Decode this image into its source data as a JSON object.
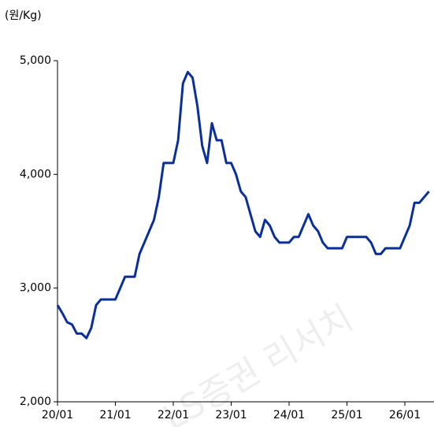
{
  "chart_data": {
    "type": "line",
    "y_label": "(원/Kg)",
    "watermark": "LS증권 리서치",
    "x": [
      "20/01",
      "20/02",
      "20/03",
      "20/04",
      "20/05",
      "20/06",
      "20/07",
      "20/08",
      "20/09",
      "20/10",
      "20/11",
      "20/12",
      "21/01",
      "21/02",
      "21/03",
      "21/04",
      "21/05",
      "21/06",
      "21/07",
      "21/08",
      "21/09",
      "21/10",
      "21/11",
      "21/12",
      "22/01",
      "22/02",
      "22/03",
      "22/04",
      "22/05",
      "22/06",
      "22/07",
      "22/08",
      "22/09",
      "22/10",
      "22/11",
      "22/12",
      "23/01",
      "23/02",
      "23/03",
      "23/04",
      "23/05",
      "23/06",
      "23/07",
      "23/08",
      "23/09",
      "23/10",
      "23/11",
      "23/12",
      "24/01",
      "24/02",
      "24/03",
      "24/04",
      "24/05",
      "24/06",
      "24/07",
      "24/08",
      "24/09",
      "24/10",
      "24/11",
      "24/12",
      "25/01",
      "25/02",
      "25/03",
      "25/04",
      "25/05",
      "25/06",
      "25/07",
      "25/08",
      "25/09",
      "25/10",
      "25/11",
      "25/12",
      "26/01",
      "26/02",
      "26/03",
      "26/04",
      "26/05",
      "26/06"
    ],
    "series": [
      {
        "color": "#0b2f9a",
        "values": [
          2850,
          2780,
          2700,
          2680,
          2600,
          2600,
          2560,
          2650,
          2850,
          2900,
          2900,
          2900,
          2900,
          3000,
          3100,
          3100,
          3100,
          3300,
          3400,
          3500,
          3600,
          3800,
          4100,
          4100,
          4100,
          4300,
          4800,
          4900,
          4850,
          4600,
          4250,
          4100,
          4450,
          4300,
          4300,
          4100,
          4100,
          4000,
          3850,
          3800,
          3650,
          3500,
          3450,
          3600,
          3550,
          3450,
          3400,
          3400,
          3400,
          3450,
          3450,
          3550,
          3650,
          3550,
          3500,
          3400,
          3350,
          3350,
          3350,
          3350,
          3450,
          3450,
          3450,
          3450,
          3450,
          3400,
          3300,
          3300,
          3350,
          3350,
          3350,
          3350,
          3450,
          3550,
          3750,
          3750,
          3800,
          3850
        ]
      }
    ],
    "xticks": [
      "20/01",
      "21/01",
      "22/01",
      "23/01",
      "24/01",
      "25/01",
      "26/01"
    ],
    "ylim": [
      2000,
      5000
    ],
    "yticks": [
      {
        "value": 2000,
        "label": "2,000"
      },
      {
        "value": 3000,
        "label": "3,000"
      },
      {
        "value": 4000,
        "label": "4,000"
      },
      {
        "value": 5000,
        "label": "5,000"
      }
    ]
  }
}
